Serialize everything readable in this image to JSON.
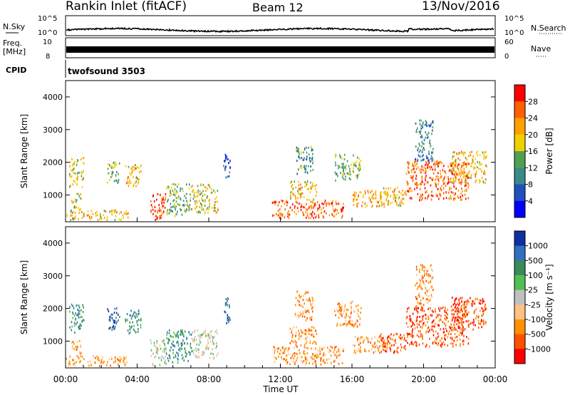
{
  "header": {
    "title": "Rankin Inlet (fitACF)",
    "beam": "Beam 12",
    "date": "13/Nov/2016"
  },
  "status": {
    "nsky_label": "N.Sky",
    "nsearch_label": "N.Search",
    "nsky_ticks": [
      "10^5",
      "10^0"
    ],
    "freq_label": "Freq.",
    "freq_unit": "[MHz]",
    "freq_ticks": [
      "10",
      "8"
    ],
    "nave_label": "Nave",
    "nave_ticks": [
      "60",
      "0"
    ],
    "cpid_label": "CPID",
    "cpid_value": "twofsound 3503"
  },
  "chart_data": [
    {
      "type": "heatmap",
      "panel": "power",
      "ylabel": "Slant Range [km]",
      "ylim": [
        180,
        4500
      ],
      "yticks": [
        "1000",
        "2000",
        "3000",
        "4000"
      ],
      "xlabel": "",
      "xlim": [
        "00:00",
        "24:00"
      ],
      "colorbar_label": "Power [dB]",
      "colorbar_ticks": [
        "4",
        "8",
        "12",
        "16",
        "20",
        "24",
        "28"
      ],
      "colorbar_colors": [
        "#0000ff",
        "#2050c0",
        "#3a8a8a",
        "#50a050",
        "#f0d000",
        "#ffa000",
        "#ff6000",
        "#ff0000"
      ],
      "regions": [
        {
          "t": [
            0.2,
            1.0
          ],
          "r": [
            1200,
            2100
          ],
          "v": 18
        },
        {
          "t": [
            0.3,
            0.9
          ],
          "r": [
            500,
            1000
          ],
          "v": 16
        },
        {
          "t": [
            0.0,
            3.5
          ],
          "r": [
            200,
            500
          ],
          "v": 20
        },
        {
          "t": [
            2.3,
            3.0
          ],
          "r": [
            1300,
            2000
          ],
          "v": 14
        },
        {
          "t": [
            3.3,
            4.2
          ],
          "r": [
            1200,
            1900
          ],
          "v": 20
        },
        {
          "t": [
            4.7,
            5.6
          ],
          "r": [
            200,
            1000
          ],
          "v": 28
        },
        {
          "t": [
            5.6,
            7.0
          ],
          "r": [
            300,
            1300
          ],
          "v": 14
        },
        {
          "t": [
            7.0,
            8.5
          ],
          "r": [
            400,
            1300
          ],
          "v": 18
        },
        {
          "t": [
            8.8,
            9.2
          ],
          "r": [
            1500,
            2300
          ],
          "v": 8
        },
        {
          "t": [
            11.5,
            15.5
          ],
          "r": [
            250,
            800
          ],
          "v": 26
        },
        {
          "t": [
            12.5,
            14.0
          ],
          "r": [
            800,
            1400
          ],
          "v": 20
        },
        {
          "t": [
            12.8,
            13.8
          ],
          "r": [
            1600,
            2500
          ],
          "v": 12
        },
        {
          "t": [
            15.0,
            16.5
          ],
          "r": [
            1400,
            2200
          ],
          "v": 14
        },
        {
          "t": [
            16.0,
            18.0
          ],
          "r": [
            600,
            1100
          ],
          "v": 22
        },
        {
          "t": [
            17.5,
            19.0
          ],
          "r": [
            600,
            1200
          ],
          "v": 20
        },
        {
          "t": [
            19.0,
            22.5
          ],
          "r": [
            800,
            2000
          ],
          "v": 26
        },
        {
          "t": [
            19.5,
            20.5
          ],
          "r": [
            2000,
            3300
          ],
          "v": 10
        },
        {
          "t": [
            21.5,
            23.5
          ],
          "r": [
            1300,
            2300
          ],
          "v": 20
        }
      ]
    },
    {
      "type": "heatmap",
      "panel": "velocity",
      "ylabel": "Slant Range [km]",
      "ylim": [
        180,
        4500
      ],
      "yticks": [
        "1000",
        "2000",
        "3000",
        "4000"
      ],
      "xlabel": "Time UT",
      "xlim": [
        "00:00",
        "24:00"
      ],
      "xticks": [
        "00:00",
        "04:00",
        "08:00",
        "12:00",
        "16:00",
        "20:00",
        "00:00"
      ],
      "colorbar_label": "Velocity [m s⁻¹]",
      "colorbar_ticks": [
        "1000",
        "500",
        "100",
        "25",
        "-25",
        "-100",
        "-500",
        "-1000"
      ],
      "colorbar_colors": [
        "#1030a0",
        "#3070c0",
        "#3a8a5a",
        "#50c050",
        "#c0c0c0",
        "#ffc080",
        "#ff9000",
        "#ff5000",
        "#ff0000"
      ],
      "regions": [
        {
          "t": [
            0.2,
            1.0
          ],
          "r": [
            1200,
            2100
          ],
          "c": 2
        },
        {
          "t": [
            0.3,
            0.9
          ],
          "r": [
            500,
            1000
          ],
          "c": 6
        },
        {
          "t": [
            0.0,
            3.5
          ],
          "r": [
            200,
            500
          ],
          "c": 6
        },
        {
          "t": [
            2.3,
            3.0
          ],
          "r": [
            1300,
            2000
          ],
          "c": 1
        },
        {
          "t": [
            3.3,
            4.2
          ],
          "r": [
            1200,
            1900
          ],
          "c": 2
        },
        {
          "t": [
            4.7,
            5.6
          ],
          "r": [
            200,
            1000
          ],
          "c": 4
        },
        {
          "t": [
            5.6,
            7.0
          ],
          "r": [
            300,
            1300
          ],
          "c": 2
        },
        {
          "t": [
            7.0,
            8.5
          ],
          "r": [
            400,
            1300
          ],
          "c": 4
        },
        {
          "t": [
            8.8,
            9.2
          ],
          "r": [
            1500,
            2300
          ],
          "c": 1
        },
        {
          "t": [
            11.5,
            15.5
          ],
          "r": [
            250,
            800
          ],
          "c": 6
        },
        {
          "t": [
            12.5,
            14.0
          ],
          "r": [
            800,
            1400
          ],
          "c": 6
        },
        {
          "t": [
            12.8,
            13.8
          ],
          "r": [
            1600,
            2500
          ],
          "c": 6
        },
        {
          "t": [
            15.0,
            16.5
          ],
          "r": [
            1400,
            2200
          ],
          "c": 6
        },
        {
          "t": [
            16.0,
            18.0
          ],
          "r": [
            600,
            1100
          ],
          "c": 6
        },
        {
          "t": [
            17.5,
            19.0
          ],
          "r": [
            600,
            1200
          ],
          "c": 7
        },
        {
          "t": [
            19.0,
            22.5
          ],
          "r": [
            800,
            2000
          ],
          "c": 7
        },
        {
          "t": [
            19.5,
            20.5
          ],
          "r": [
            2000,
            3300
          ],
          "c": 6
        },
        {
          "t": [
            21.5,
            23.5
          ],
          "r": [
            1300,
            2300
          ],
          "c": 7
        }
      ]
    }
  ]
}
